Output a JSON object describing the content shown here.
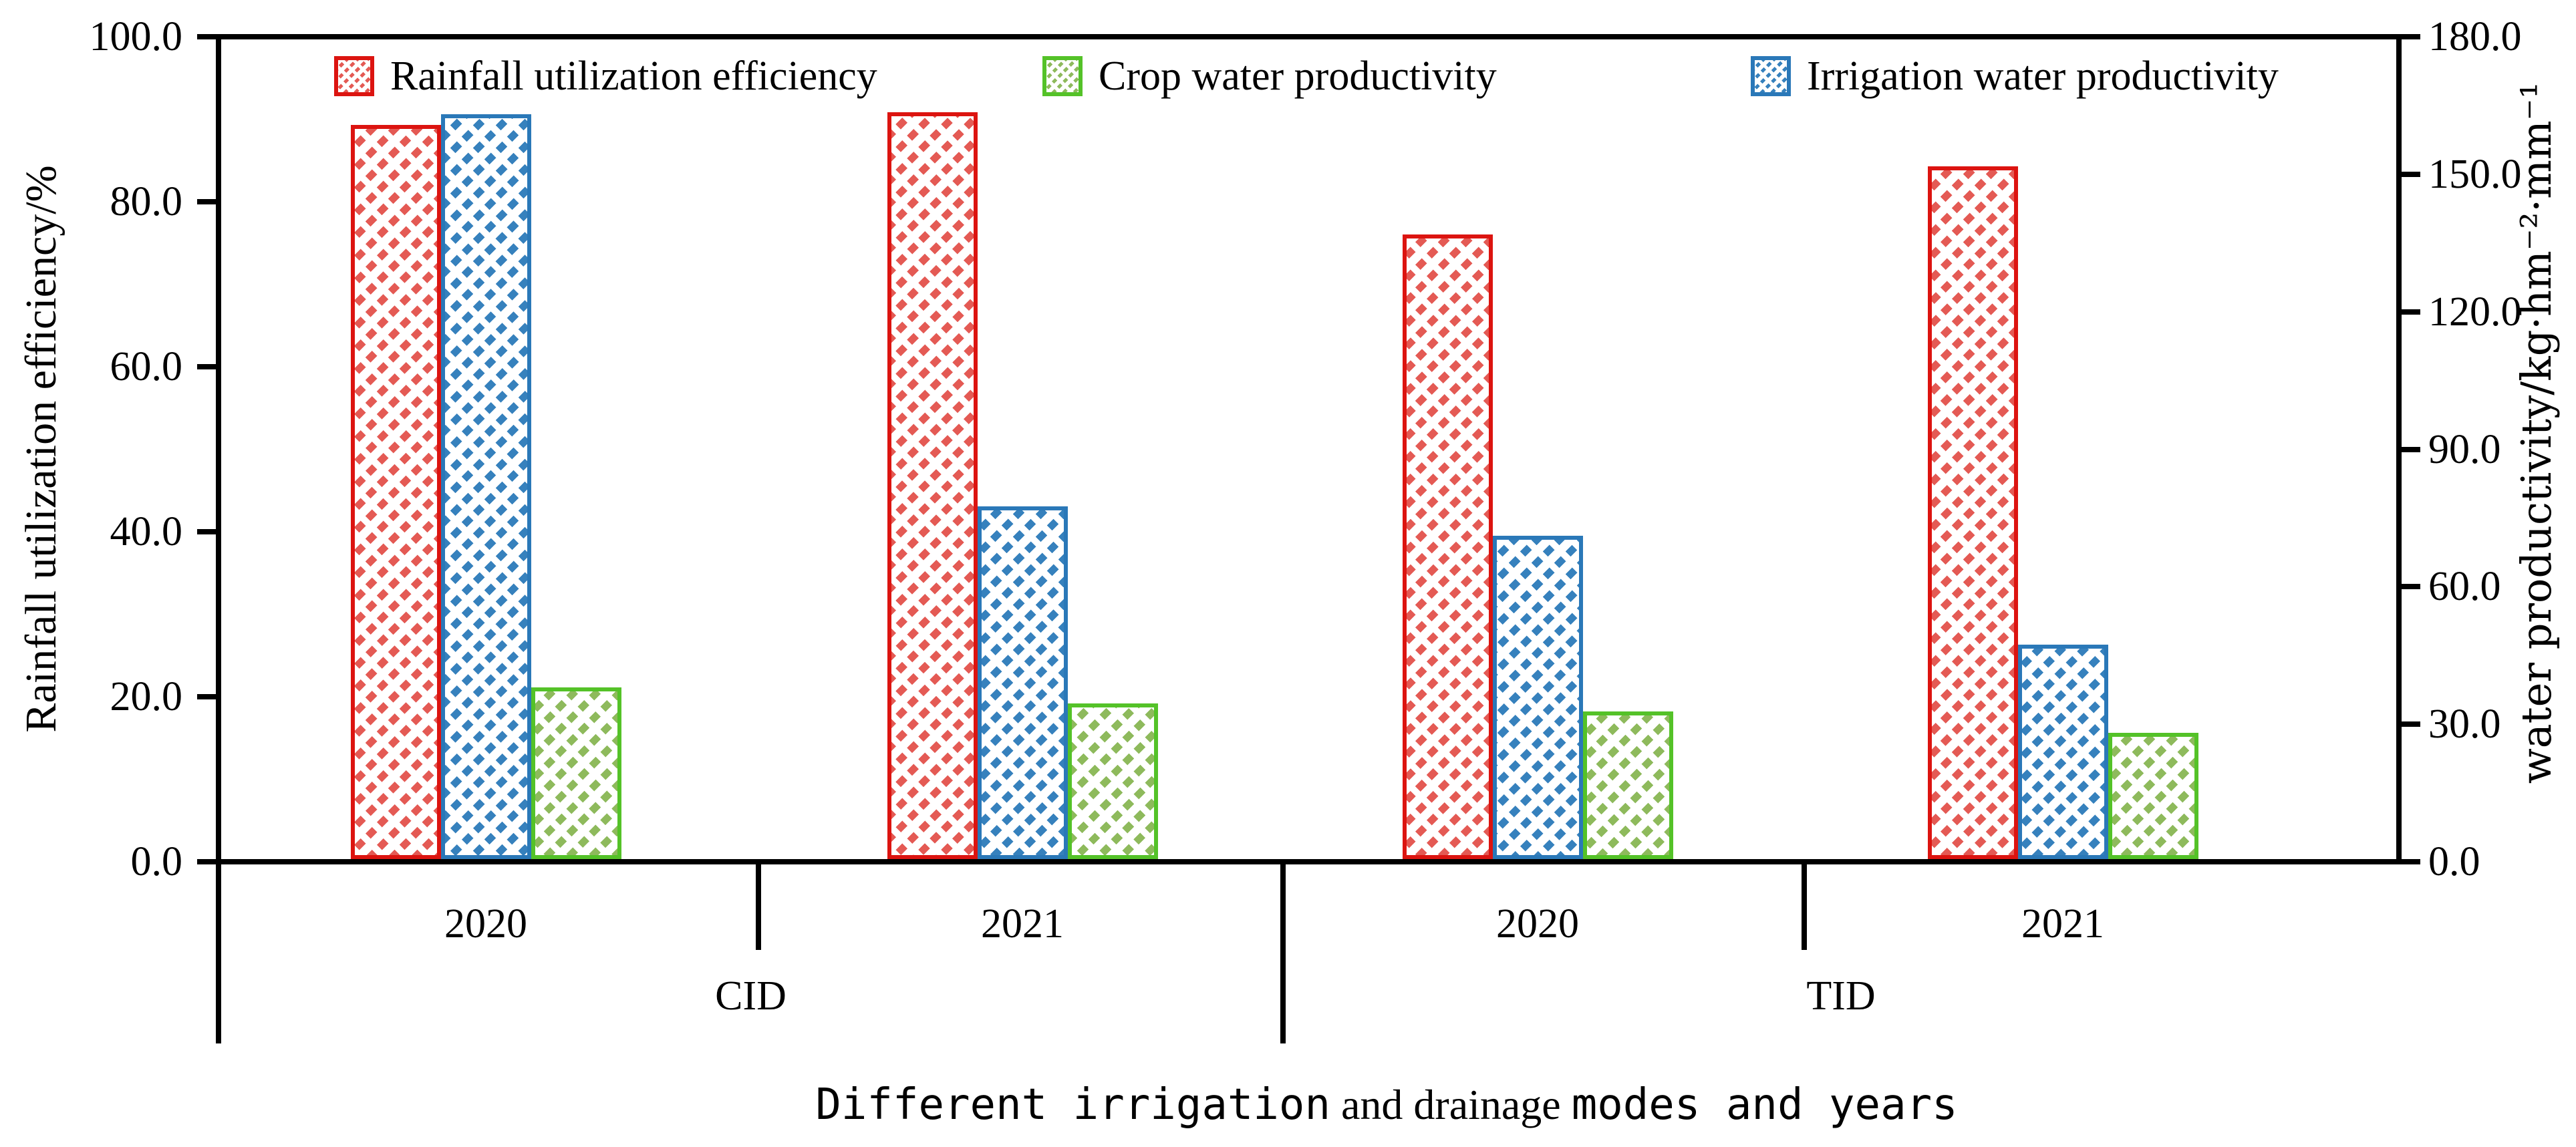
{
  "figure": {
    "background": "#ffffff",
    "axis_color": "#000000"
  },
  "chart_data": {
    "type": "bar",
    "title": "",
    "left_axis": {
      "label": "Rainfall utilization efficiency/%",
      "min": 0,
      "max": 100,
      "tick_step": 20,
      "tick_labels_top_to_bottom": [
        "100.0",
        "80.0",
        "60.0",
        "40.0",
        "20.0",
        "0.0"
      ]
    },
    "right_axis": {
      "label": "water productivity/kg·hm⁻²·mm⁻¹",
      "min": 0,
      "max": 180,
      "tick_step": 30,
      "tick_labels_top_to_bottom": [
        "180.0",
        "150.0",
        "120.0",
        "90.0",
        "60.0",
        "30.0",
        "0.0"
      ]
    },
    "xlabel_segments": [
      {
        "text": "Different irrigation",
        "font": "alt"
      },
      {
        "text": " and drainage ",
        "font": "serif"
      },
      {
        "text": "modes and years",
        "font": "alt"
      }
    ],
    "groups": [
      {
        "mode": "CID",
        "year": "2020"
      },
      {
        "mode": "CID",
        "year": "2021"
      },
      {
        "mode": "TID",
        "year": "2020"
      },
      {
        "mode": "TID",
        "year": "2021"
      }
    ],
    "mode_labels": [
      "CID",
      "TID"
    ],
    "legend_position": "top-inside",
    "grid": false,
    "series": [
      {
        "key": "rue",
        "name": "Rainfall utilization efficiency",
        "axis": "left",
        "border_color": "#dc1410",
        "hatch_color": "#e45a54",
        "slot": 0,
        "values": [
          89.0,
          90.5,
          75.7,
          84.0
        ]
      },
      {
        "key": "cwp",
        "name": "Crop water productivity",
        "axis": "right",
        "border_color": "#54c228",
        "hatch_color": "#8eba5c",
        "slot": 2,
        "values": [
          37.5,
          34.0,
          32.2,
          27.5
        ]
      },
      {
        "key": "iwp",
        "name": "Irrigation water productivity",
        "axis": "right",
        "border_color": "#2a78b8",
        "hatch_color": "#3681bd",
        "slot": 1,
        "values": [
          162.5,
          77.0,
          70.5,
          46.8
        ]
      }
    ]
  }
}
